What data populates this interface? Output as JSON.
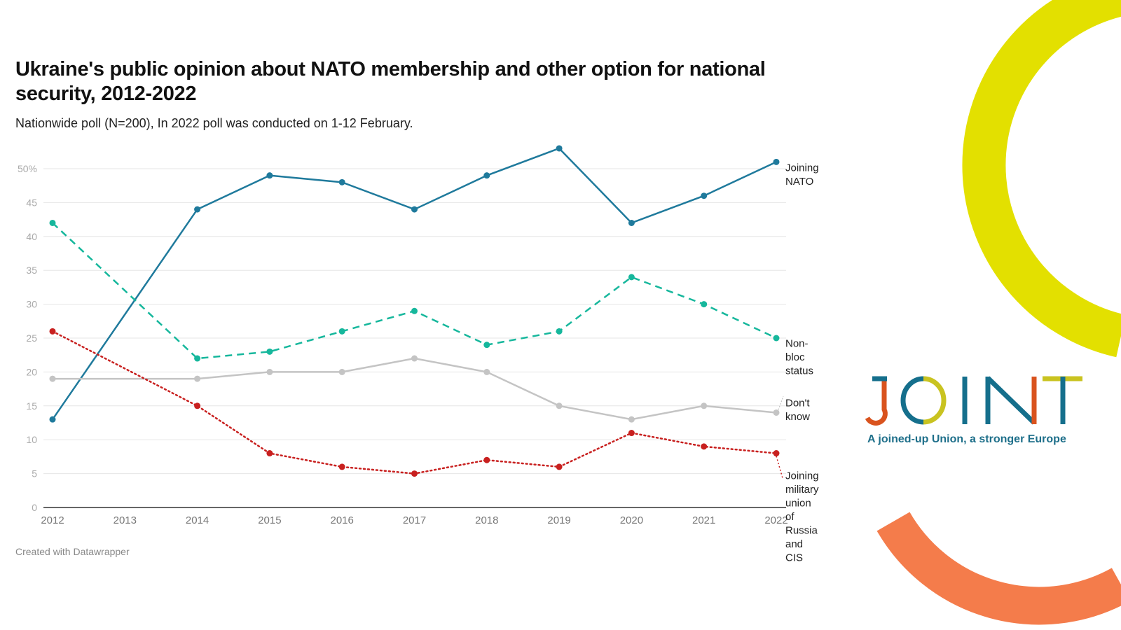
{
  "header": {
    "title": "Ukraine's public opinion about NATO membership and other option for national security, 2012-2022",
    "subtitle": "Nationwide poll (N=200), In 2022 poll was conducted on 1-12 February."
  },
  "footer": {
    "credit": "Created with Datawrapper"
  },
  "logo": {
    "letters": [
      "J",
      "O",
      "I",
      "N",
      "T"
    ],
    "tagline": "A joined-up Union, a stronger Europe",
    "colors": {
      "teal": "#156f8c",
      "orange": "#d9531e",
      "yellow": "#c9c320",
      "deco_yellow": "#e3e000",
      "deco_orange": "#f47c4b"
    }
  },
  "chart_data": {
    "type": "line",
    "title": "Ukraine's public opinion about NATO membership and other option for national security, 2012-2022",
    "subtitle": "Nationwide poll (N=200), In 2022 poll was conducted on 1-12 February.",
    "xlabel": "",
    "ylabel": "",
    "x_ticks": [
      "2012",
      "2013",
      "2014",
      "2015",
      "2016",
      "2017",
      "2018",
      "2019",
      "2020",
      "2021",
      "2022"
    ],
    "x": [
      2012,
      2014,
      2015,
      2016,
      2017,
      2018,
      2019,
      2020,
      2021,
      2022
    ],
    "xlim": [
      2012,
      2022
    ],
    "y_ticks": [
      "0",
      "5",
      "10",
      "15",
      "20",
      "25",
      "30",
      "35",
      "40",
      "45",
      "50%"
    ],
    "ylim": [
      0,
      50
    ],
    "grid": true,
    "legend": "direct labels at right",
    "series": [
      {
        "name": "Joining NATO",
        "label_lines": [
          "Joining",
          "NATO"
        ],
        "color": "#1f7a9c",
        "style": "solid",
        "values": [
          13,
          44,
          49,
          48,
          44,
          49,
          53,
          42,
          46,
          51
        ]
      },
      {
        "name": "Non-bloc status",
        "label_lines": [
          "Non-",
          "bloc",
          "status"
        ],
        "color": "#16b79c",
        "style": "dashed",
        "values": [
          42,
          22,
          23,
          26,
          29,
          24,
          26,
          34,
          30,
          25
        ]
      },
      {
        "name": "Don't know",
        "label_lines": [
          "Don't",
          "know"
        ],
        "color": "#c4c4c4",
        "style": "solid",
        "values": [
          19,
          19,
          20,
          20,
          22,
          20,
          15,
          13,
          15,
          14
        ]
      },
      {
        "name": "Joining military union of Russia and CIS",
        "label_lines": [
          "Joining",
          "military",
          "union",
          "of",
          "Russia",
          "and",
          "CIS"
        ],
        "color": "#c8201f",
        "style": "dotted",
        "values": [
          26,
          15,
          8,
          6,
          5,
          7,
          6,
          11,
          9,
          8
        ]
      }
    ]
  }
}
